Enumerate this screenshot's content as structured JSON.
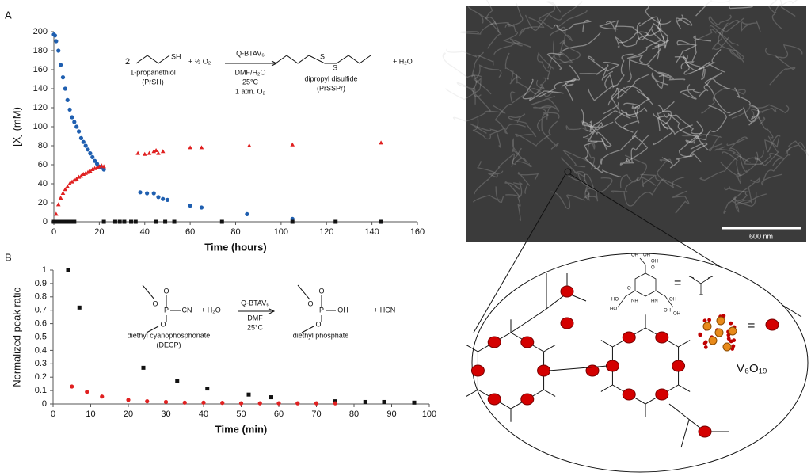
{
  "chart_data": [
    {
      "type": "scatter",
      "x_label": "Time (hours)",
      "y_label": "[X] (mM)",
      "xlim": [
        0,
        160
      ],
      "ylim": [
        0,
        200
      ],
      "xticks": [
        0,
        20,
        40,
        60,
        80,
        100,
        120,
        140,
        160
      ],
      "yticks": [
        0,
        20,
        40,
        60,
        80,
        100,
        120,
        140,
        160,
        180,
        200
      ],
      "series": [
        {
          "color": "#1f5fb0",
          "marker": "circle",
          "x": [
            0,
            0.5,
            1,
            2,
            3,
            4,
            5,
            6,
            7,
            8,
            9,
            10,
            11,
            12,
            13,
            14,
            15,
            16,
            17,
            18,
            19,
            20,
            21,
            22,
            38,
            41,
            44,
            46,
            48,
            50,
            60,
            65,
            85,
            105,
            144
          ],
          "values": [
            197,
            196,
            190,
            180,
            165,
            152,
            140,
            128,
            118,
            110,
            105,
            100,
            95,
            88,
            84,
            80,
            76,
            72,
            68,
            64,
            61,
            58,
            57,
            55,
            31,
            30,
            30,
            26,
            24,
            23,
            17,
            15,
            8,
            3,
            0
          ]
        },
        {
          "color": "#e02020",
          "marker": "triangle",
          "x": [
            0,
            1,
            2,
            3,
            4,
            5,
            6,
            7,
            8,
            9,
            10,
            11,
            12,
            13,
            14,
            15,
            16,
            17,
            18,
            19,
            20,
            21,
            22,
            37,
            40,
            42,
            44,
            45,
            46,
            48,
            60,
            65,
            86,
            105,
            144
          ],
          "values": [
            0,
            8,
            18,
            25,
            30,
            34,
            37,
            40,
            42,
            44,
            45,
            47,
            48,
            50,
            51,
            52,
            53,
            55,
            56,
            57,
            58,
            59,
            58,
            72,
            71,
            72,
            74,
            75,
            72,
            74,
            78,
            78,
            80,
            81,
            83
          ]
        },
        {
          "color": "#111111",
          "marker": "square",
          "x": [
            0,
            1,
            2,
            3,
            4,
            5,
            6,
            7,
            8,
            9,
            22,
            27,
            29,
            31,
            34,
            36,
            45,
            49,
            53,
            74,
            105,
            124,
            144
          ],
          "values": [
            0,
            0,
            0,
            0,
            0,
            0,
            0,
            0,
            0,
            0,
            0,
            0,
            0,
            0,
            0,
            0,
            0,
            0,
            0,
            0,
            0,
            0,
            0
          ]
        }
      ]
    },
    {
      "type": "scatter",
      "x_label": "Time (min)",
      "y_label": "Normalized peak ratio",
      "xlim": [
        0,
        100
      ],
      "ylim": [
        0,
        1
      ],
      "xticks": [
        0,
        10,
        20,
        30,
        40,
        50,
        60,
        70,
        80,
        90,
        100
      ],
      "yticks": [
        0,
        0.1,
        0.2,
        0.3,
        0.4,
        0.5,
        0.6,
        0.7,
        0.8,
        0.9,
        1
      ],
      "series": [
        {
          "color": "#111111",
          "marker": "square",
          "x": [
            4,
            7,
            24,
            33,
            41,
            52,
            58,
            75,
            83,
            88,
            96
          ],
          "values": [
            1,
            0.72,
            0.27,
            0.17,
            0.115,
            0.07,
            0.05,
            0.02,
            0.015,
            0.015,
            0.01
          ]
        },
        {
          "color": "#e02020",
          "marker": "circle",
          "x": [
            5,
            9,
            13,
            20,
            25,
            30,
            35,
            40,
            45,
            50,
            55,
            60,
            65,
            70,
            75
          ],
          "values": [
            0.13,
            0.09,
            0.055,
            0.03,
            0.02,
            0.015,
            0.01,
            0.01,
            0.008,
            0.005,
            0.005,
            0.005,
            0.005,
            0.005,
            0.005
          ]
        }
      ]
    }
  ],
  "panels": {
    "a": "A",
    "b": "B"
  },
  "scheme_a": {
    "coef": "2",
    "sh": "SH",
    "oxygen": "+ ½ O₂",
    "catalyst": "Q-BTAV₆",
    "solvent": "DMF/H₂O",
    "temp": "25°C",
    "atm": "1 atm. O₂",
    "reactant": "1-propanethiol",
    "reactant_abbr": "(PrSH)",
    "s1": "S",
    "s2": "S",
    "product": "dipropyl disulfide",
    "product_abbr": "(PrSSPr)",
    "water": "+ H₂O"
  },
  "scheme_b": {
    "atoms": [
      "O",
      "P",
      "O",
      "CN",
      "O",
      "O",
      "P",
      "O",
      "OH",
      "O"
    ],
    "water": "+ H₂O",
    "catalyst": "Q-BTAV₆",
    "solvent": "DMF",
    "temp": "25°C",
    "hcn": "+ HCN",
    "reactant": "diethyl cyanophosphonate",
    "reactant_abbr": "(DECP)",
    "product": "diethyl phosphate"
  },
  "micrograph": {
    "scale_bar": "600 nm"
  },
  "diagram": {
    "formula": "V₆O₁₉",
    "eq1": "=",
    "eq2": "=",
    "atoms": [
      "OH",
      "OH",
      "OH",
      "O",
      "HN",
      "NH",
      "O",
      "HO",
      "HO",
      "OH",
      "OH",
      "OH"
    ]
  }
}
